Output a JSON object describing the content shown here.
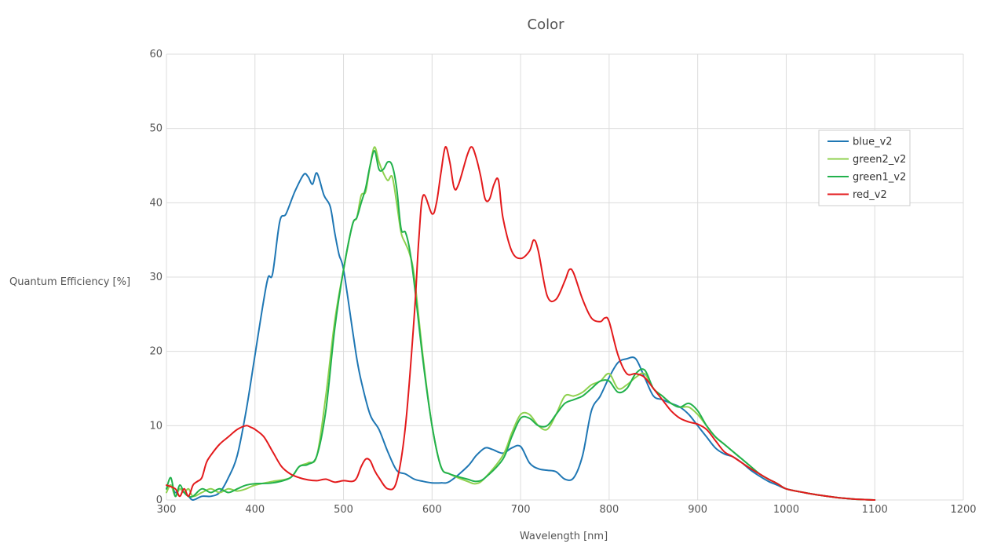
{
  "chart_data": {
    "type": "line",
    "title": "Color",
    "xlabel": "Wavelength [nm]",
    "ylabel": "Quantum Efficiency [%]",
    "xlim": [
      300,
      1200
    ],
    "ylim": [
      0,
      60
    ],
    "xticks": [
      "300",
      "400",
      "500",
      "600",
      "700",
      "800",
      "900",
      "1000",
      "1100",
      "1200"
    ],
    "yticks": [
      "0",
      "10",
      "20",
      "30",
      "40",
      "50",
      "60"
    ],
    "grid": true,
    "legend_position": "top-right",
    "series": [
      {
        "name": "blue_v2",
        "color": "#1f77b4",
        "x": [
          300,
          305,
          310,
          315,
          320,
          325,
          330,
          340,
          350,
          360,
          370,
          380,
          390,
          400,
          410,
          415,
          420,
          428,
          435,
          445,
          455,
          460,
          465,
          470,
          478,
          485,
          490,
          495,
          500,
          510,
          515,
          520,
          530,
          540,
          550,
          560,
          570,
          580,
          590,
          600,
          610,
          620,
          640,
          650,
          660,
          668,
          680,
          690,
          700,
          710,
          720,
          730,
          740,
          750,
          760,
          770,
          780,
          790,
          800,
          810,
          820,
          830,
          840,
          850,
          860,
          870,
          880,
          890,
          900,
          910,
          920,
          930,
          940,
          950,
          960,
          970,
          980,
          990,
          1000,
          1020,
          1040,
          1060,
          1080,
          1100
        ],
        "y": [
          1.5,
          2.0,
          1.0,
          1.5,
          1.0,
          0.5,
          0.0,
          0.5,
          0.5,
          1.0,
          3.0,
          6.0,
          12.0,
          19.5,
          27.0,
          30.0,
          30.5,
          37.5,
          38.5,
          41.5,
          43.8,
          43.5,
          42.5,
          44.0,
          41.0,
          39.5,
          36.0,
          33.0,
          31.0,
          23.0,
          19.0,
          16.0,
          11.5,
          9.5,
          6.5,
          4.0,
          3.5,
          2.8,
          2.5,
          2.3,
          2.3,
          2.5,
          4.5,
          6.0,
          7.0,
          6.8,
          6.3,
          7.0,
          7.2,
          5.0,
          4.2,
          4.0,
          3.8,
          2.8,
          3.0,
          6.0,
          12.0,
          14.0,
          16.5,
          18.5,
          19.0,
          19.0,
          16.5,
          14.0,
          13.5,
          13.0,
          12.5,
          11.5,
          10.0,
          8.5,
          7.0,
          6.2,
          5.8,
          5.0,
          4.0,
          3.2,
          2.5,
          2.0,
          1.5,
          1.0,
          0.6,
          0.3,
          0.1,
          0.0
        ]
      },
      {
        "name": "green2_v2",
        "color": "#8fd14f",
        "x": [
          300,
          305,
          310,
          315,
          320,
          325,
          330,
          340,
          350,
          360,
          370,
          380,
          390,
          400,
          420,
          440,
          450,
          460,
          470,
          480,
          490,
          500,
          510,
          515,
          520,
          525,
          530,
          535,
          540,
          545,
          550,
          555,
          560,
          565,
          570,
          575,
          580,
          590,
          600,
          610,
          620,
          640,
          650,
          660,
          680,
          690,
          700,
          710,
          720,
          730,
          740,
          750,
          760,
          770,
          780,
          790,
          800,
          810,
          820,
          830,
          840,
          850,
          860,
          870,
          880,
          890,
          900,
          910,
          920,
          930,
          940,
          950,
          960,
          970,
          980,
          990,
          1000,
          1020,
          1040,
          1060,
          1080,
          1100
        ],
        "y": [
          1.0,
          2.0,
          0.5,
          1.5,
          1.0,
          1.5,
          0.5,
          1.0,
          1.5,
          1.0,
          1.5,
          1.2,
          1.5,
          2.0,
          2.5,
          3.0,
          4.5,
          5.0,
          6.0,
          14.0,
          24.0,
          31.0,
          37.0,
          38.0,
          41.0,
          41.5,
          45.0,
          47.5,
          45.5,
          44.0,
          43.0,
          43.5,
          40.0,
          36.0,
          34.5,
          33.0,
          30.0,
          19.0,
          10.0,
          4.5,
          3.5,
          2.5,
          2.2,
          3.0,
          6.0,
          9.0,
          11.5,
          11.5,
          10.0,
          9.5,
          11.5,
          14.0,
          14.0,
          14.5,
          15.5,
          16.0,
          17.0,
          15.0,
          15.5,
          16.5,
          17.0,
          15.0,
          14.0,
          13.0,
          12.5,
          12.5,
          11.5,
          10.0,
          8.5,
          7.5,
          6.5,
          5.5,
          4.5,
          3.5,
          2.8,
          2.2,
          1.5,
          1.0,
          0.6,
          0.3,
          0.1,
          0.0
        ]
      },
      {
        "name": "green1_v2",
        "color": "#22b14c",
        "x": [
          300,
          305,
          310,
          315,
          320,
          325,
          330,
          340,
          350,
          360,
          370,
          380,
          390,
          400,
          420,
          440,
          450,
          460,
          470,
          480,
          490,
          500,
          510,
          515,
          520,
          525,
          530,
          535,
          540,
          545,
          550,
          555,
          560,
          565,
          570,
          575,
          580,
          590,
          600,
          610,
          620,
          640,
          650,
          660,
          680,
          690,
          700,
          710,
          720,
          730,
          740,
          750,
          760,
          770,
          780,
          790,
          800,
          810,
          820,
          830,
          840,
          850,
          860,
          870,
          880,
          890,
          900,
          910,
          920,
          930,
          940,
          950,
          960,
          970,
          980,
          990,
          1000,
          1020,
          1040,
          1060,
          1080,
          1100
        ],
        "y": [
          1.5,
          3.0,
          0.5,
          2.0,
          1.0,
          0.5,
          0.5,
          1.5,
          1.0,
          1.5,
          1.0,
          1.5,
          2.0,
          2.2,
          2.3,
          3.0,
          4.5,
          4.8,
          6.0,
          12.0,
          23.0,
          31.0,
          37.0,
          38.0,
          40.0,
          42.0,
          45.0,
          47.0,
          44.5,
          44.5,
          45.5,
          45.0,
          42.0,
          36.5,
          36.0,
          33.5,
          29.0,
          18.5,
          10.0,
          4.5,
          3.5,
          2.8,
          2.5,
          3.0,
          5.5,
          8.5,
          11.0,
          11.0,
          10.0,
          10.0,
          11.5,
          13.0,
          13.5,
          14.0,
          15.0,
          16.0,
          16.0,
          14.5,
          15.0,
          17.0,
          17.5,
          15.0,
          14.0,
          13.0,
          12.5,
          13.0,
          12.0,
          10.0,
          8.5,
          7.5,
          6.5,
          5.5,
          4.5,
          3.5,
          2.8,
          2.2,
          1.5,
          1.0,
          0.6,
          0.3,
          0.1,
          0.0
        ]
      },
      {
        "name": "red_v2",
        "color": "#e31a1c",
        "x": [
          300,
          310,
          315,
          320,
          325,
          330,
          335,
          340,
          345,
          350,
          360,
          370,
          380,
          390,
          395,
          400,
          410,
          420,
          430,
          440,
          450,
          460,
          470,
          480,
          490,
          500,
          510,
          515,
          520,
          525,
          530,
          535,
          540,
          550,
          560,
          570,
          580,
          585,
          590,
          600,
          605,
          610,
          615,
          620,
          625,
          630,
          640,
          645,
          650,
          655,
          660,
          665,
          670,
          675,
          680,
          690,
          700,
          710,
          715,
          720,
          730,
          740,
          750,
          755,
          760,
          770,
          780,
          790,
          795,
          800,
          810,
          820,
          830,
          840,
          850,
          860,
          870,
          880,
          890,
          900,
          910,
          920,
          930,
          940,
          950,
          960,
          970,
          980,
          990,
          1000,
          1020,
          1040,
          1060,
          1080,
          1100
        ],
        "y": [
          2.0,
          1.5,
          0.5,
          1.5,
          0.5,
          2.0,
          2.5,
          3.0,
          5.0,
          6.0,
          7.5,
          8.5,
          9.5,
          10.0,
          9.8,
          9.5,
          8.5,
          6.5,
          4.5,
          3.5,
          3.0,
          2.7,
          2.6,
          2.8,
          2.4,
          2.6,
          2.5,
          3.0,
          4.5,
          5.5,
          5.3,
          4.0,
          3.0,
          1.5,
          2.5,
          10.0,
          25.0,
          35.0,
          41.0,
          38.5,
          40.0,
          44.0,
          47.5,
          45.5,
          42.0,
          42.5,
          46.5,
          47.5,
          46.0,
          43.5,
          40.5,
          40.5,
          42.5,
          43.0,
          38.0,
          33.5,
          32.5,
          33.5,
          35.0,
          33.5,
          27.5,
          27.0,
          29.5,
          31.0,
          30.5,
          27.0,
          24.5,
          24.0,
          24.5,
          24.0,
          19.5,
          17.0,
          17.0,
          16.5,
          15.0,
          13.5,
          12.0,
          11.0,
          10.5,
          10.2,
          9.5,
          8.0,
          6.5,
          5.8,
          5.0,
          4.2,
          3.5,
          2.8,
          2.2,
          1.5,
          1.0,
          0.6,
          0.3,
          0.1,
          0.0
        ]
      }
    ]
  }
}
